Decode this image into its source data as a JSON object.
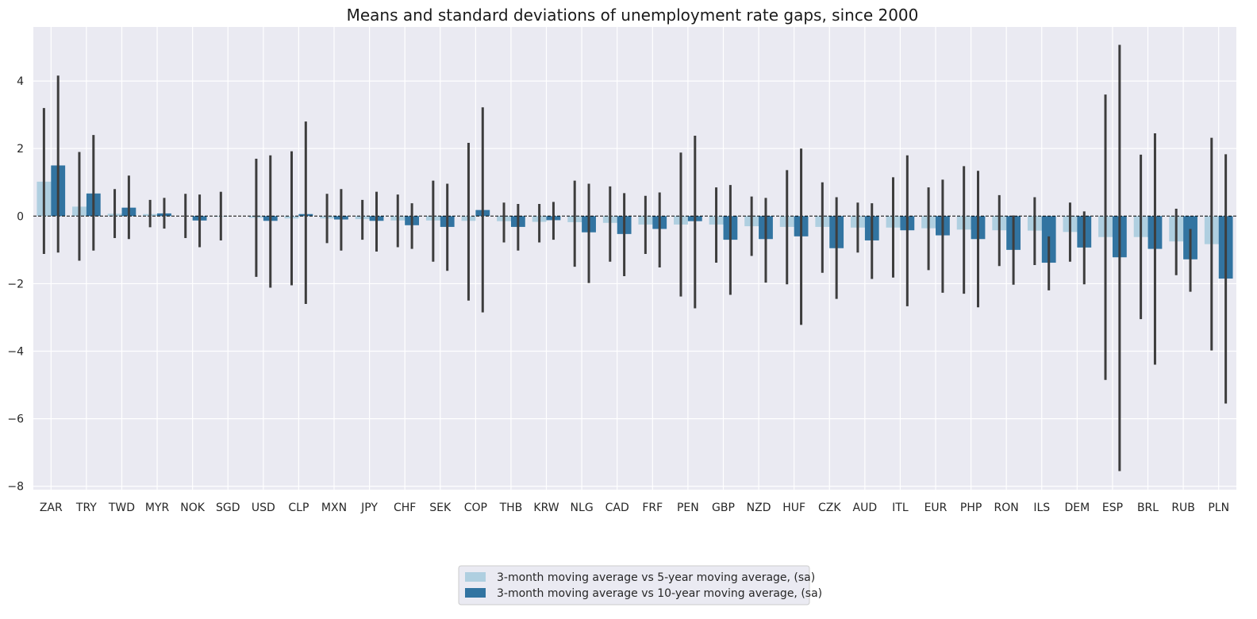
{
  "chart_data": {
    "type": "bar",
    "title": "Means and standard deviations of unemployment rate gaps, since 2000",
    "xlabel": "",
    "ylabel": "",
    "ylim": [
      -8.1,
      5.6
    ],
    "yticks": [
      -8,
      -6,
      -4,
      -2,
      0,
      2,
      4
    ],
    "grid": true,
    "legend_position": "bottom-center",
    "categories": [
      "ZAR",
      "TRY",
      "TWD",
      "MYR",
      "NOK",
      "SGD",
      "USD",
      "CLP",
      "MXN",
      "JPY",
      "CHF",
      "SEK",
      "COP",
      "THB",
      "KRW",
      "NLG",
      "CAD",
      "FRF",
      "PEN",
      "GBP",
      "NZD",
      "HUF",
      "CZK",
      "AUD",
      "ITL",
      "EUR",
      "PHP",
      "RON",
      "ILS",
      "DEM",
      "ESP",
      "BRL",
      "RUB",
      "PLN"
    ],
    "series": [
      {
        "name": "3-month moving average vs 5-year moving average, (sa)",
        "color": "#afcfe0",
        "values": [
          1.02,
          0.28,
          0.07,
          0.06,
          0.0,
          -0.02,
          -0.05,
          -0.07,
          -0.07,
          -0.09,
          -0.13,
          -0.13,
          -0.14,
          -0.15,
          -0.17,
          -0.18,
          -0.2,
          -0.25,
          -0.25,
          -0.25,
          -0.3,
          -0.32,
          -0.32,
          -0.34,
          -0.34,
          -0.36,
          -0.4,
          -0.42,
          -0.43,
          -0.47,
          -0.62,
          -0.62,
          -0.75,
          -0.83
        ],
        "err_low": [
          -1.12,
          -1.32,
          -0.65,
          -0.33,
          -0.65,
          -0.72,
          -1.8,
          -2.05,
          -0.8,
          -0.7,
          -0.92,
          -1.35,
          -2.5,
          -0.78,
          -0.78,
          -1.5,
          -1.35,
          -1.12,
          -2.38,
          -1.38,
          -1.18,
          -2.02,
          -1.68,
          -1.08,
          -1.82,
          -1.6,
          -2.3,
          -1.48,
          -1.45,
          -1.35,
          -4.85,
          -3.05,
          -1.75,
          -3.98
        ],
        "err_high": [
          3.2,
          1.9,
          0.8,
          0.48,
          0.66,
          0.72,
          1.7,
          1.92,
          0.66,
          0.48,
          0.64,
          1.05,
          2.17,
          0.4,
          0.36,
          1.05,
          0.88,
          0.6,
          1.88,
          0.85,
          0.58,
          1.36,
          1.0,
          0.4,
          1.15,
          0.85,
          1.48,
          0.62,
          0.56,
          0.4,
          3.6,
          1.82,
          0.22,
          2.32
        ]
      },
      {
        "name": "3-month moving average vs 10-year moving average, (sa)",
        "color": "#3274a1",
        "values": [
          1.5,
          0.67,
          0.25,
          0.08,
          -0.13,
          0.0,
          -0.14,
          0.06,
          -0.1,
          -0.14,
          -0.27,
          -0.32,
          0.18,
          -0.32,
          -0.12,
          -0.48,
          -0.53,
          -0.38,
          -0.15,
          -0.7,
          -0.68,
          -0.6,
          -0.95,
          -0.72,
          -0.42,
          -0.57,
          -0.68,
          -1.0,
          -1.38,
          -0.93,
          -1.22,
          -0.97,
          -1.28,
          -1.85
        ],
        "err_low": [
          -1.08,
          -1.02,
          -0.68,
          -0.37,
          -0.92,
          null,
          -2.12,
          -2.6,
          -1.02,
          -1.05,
          -0.97,
          -1.62,
          -2.85,
          -1.02,
          -0.7,
          -1.98,
          -1.78,
          -1.52,
          -2.73,
          -2.33,
          -1.97,
          -3.22,
          -2.45,
          -1.86,
          -2.67,
          -2.27,
          -2.7,
          -2.03,
          -2.2,
          -2.02,
          -7.55,
          -4.4,
          -2.24,
          -5.55
        ],
        "err_high": [
          4.16,
          2.4,
          1.2,
          0.54,
          0.64,
          null,
          1.8,
          2.8,
          0.8,
          0.72,
          0.38,
          0.96,
          3.22,
          0.36,
          0.42,
          0.96,
          0.68,
          0.7,
          2.38,
          0.92,
          0.54,
          2.0,
          0.56,
          0.38,
          1.8,
          1.08,
          1.34,
          0.02,
          -0.6,
          0.14,
          5.07,
          2.45,
          -0.38,
          1.83
        ]
      }
    ]
  }
}
